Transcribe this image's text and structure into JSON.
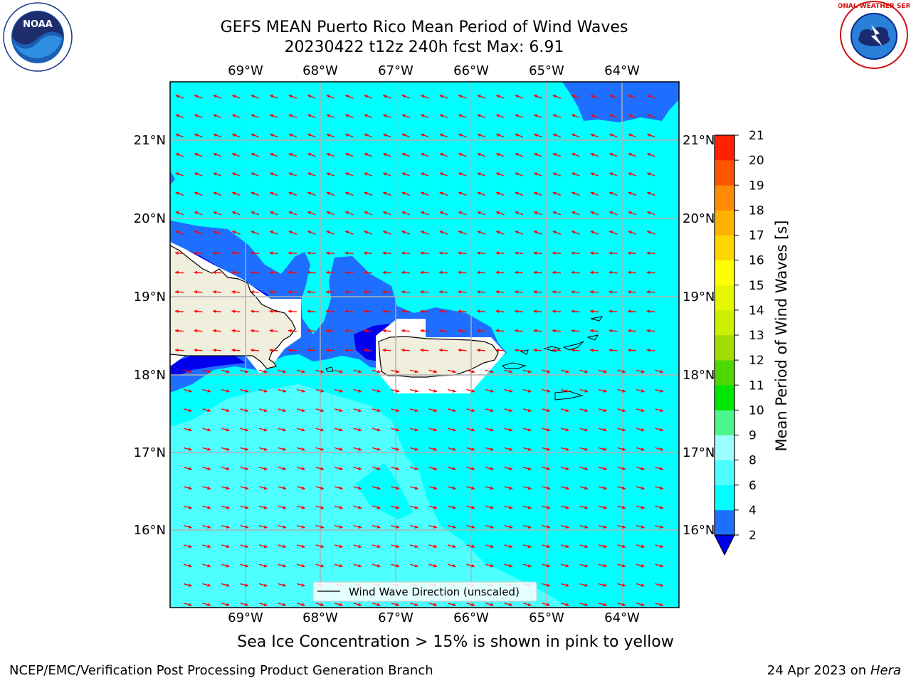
{
  "title": {
    "line1": "GEFS MEAN Puerto Rico Mean Period of Wind Waves",
    "line2": "20230422 t12z 240h fcst   Max: 6.91"
  },
  "logos": {
    "left": {
      "name": "NOAA",
      "ring_text": "NATIONAL OCEANIC AND ATMOSPHERIC ADMINISTRATION · U.S. DEPARTMENT OF COMMERCE"
    },
    "right": {
      "name": "National Weather Service",
      "ring_text": "NATIONAL WEATHER SERVICE"
    }
  },
  "map": {
    "lon_labels": [
      "69°W",
      "68°W",
      "67°W",
      "66°W",
      "65°W",
      "64°W"
    ],
    "lat_labels": [
      "21°N",
      "20°N",
      "19°N",
      "18°N",
      "17°N",
      "16°N"
    ],
    "legend_label": "Wind Wave Direction (unscaled)",
    "colors": {
      "ocean_base": "#00ffff",
      "light_band": "#4dffff",
      "period_2_4": "#1e6fff",
      "period_under_2": "#0000ee",
      "land": "#f0eedc",
      "arrow": "#ff0000",
      "grid": "#b0b0b0"
    }
  },
  "colorbar": {
    "label": "Mean Period of Wind Waves [s]",
    "ticks": [
      "2",
      "4",
      "6",
      "8",
      "9",
      "10",
      "11",
      "12",
      "13",
      "14",
      "15",
      "16",
      "17",
      "18",
      "19",
      "20",
      "21"
    ],
    "colors": [
      "#1e6fff",
      "#00ffff",
      "#4dffff",
      "#9bffff",
      "#4df58b",
      "#00e600",
      "#4ed800",
      "#a2dc00",
      "#cdf000",
      "#e6f800",
      "#ffff00",
      "#ffd500",
      "#ffb300",
      "#ff8c00",
      "#ff5500",
      "#ff2200",
      "#ff0000"
    ],
    "extend_color": "#0000ee"
  },
  "subtitle": "Sea Ice Concentration > 15% is shown in pink to yellow",
  "footer": {
    "left": "NCEP/EMC/Verification Post Processing Product Generation Branch",
    "date": "24 Apr 2023 on",
    "machine": "Hera"
  }
}
